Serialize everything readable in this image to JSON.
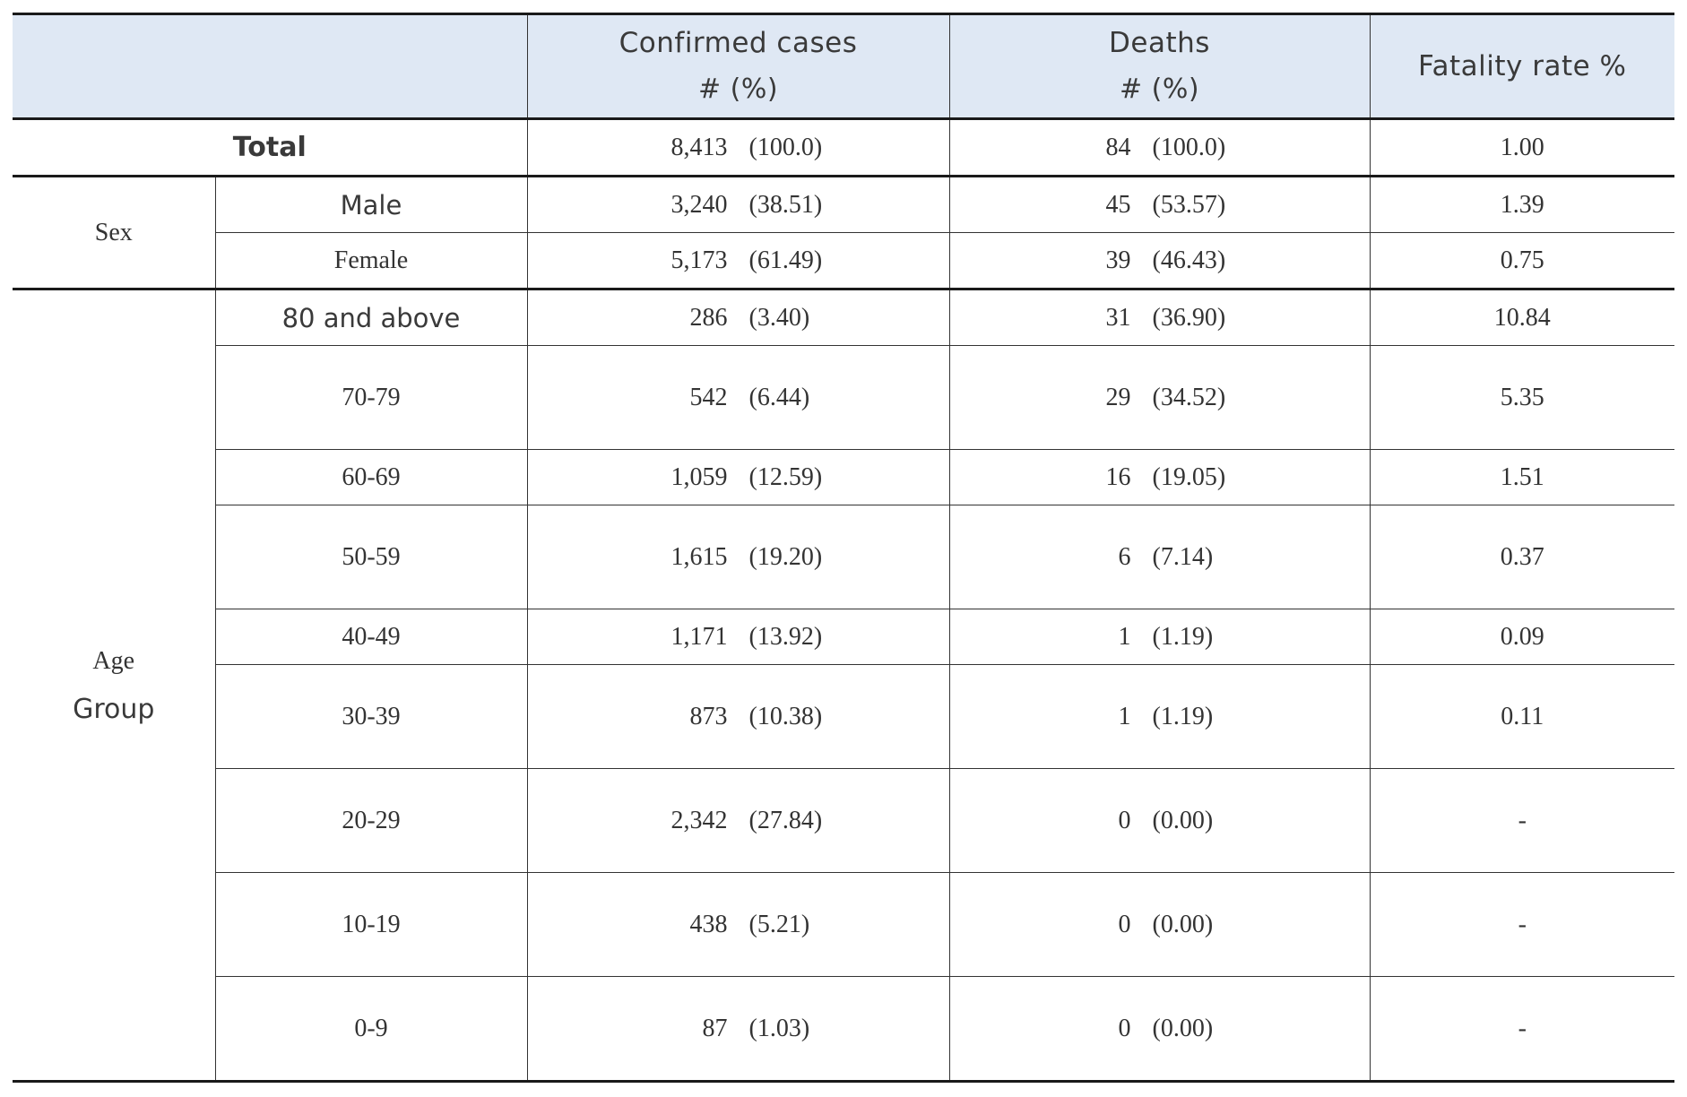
{
  "header": {
    "confirmed_line1": "Confirmed cases",
    "confirmed_line2": "# (%)",
    "deaths_line1": "Deaths",
    "deaths_line2": "# (%)",
    "fatality": "Fatality rate %"
  },
  "total": {
    "label": "Total",
    "cases": "8,413",
    "cases_pct": "(100.0)",
    "deaths": "84",
    "deaths_pct": "(100.0)",
    "rate": "1.00"
  },
  "sex": {
    "group_label": "Sex",
    "rows": [
      {
        "label": "Male",
        "cases": "3,240",
        "cases_pct": "(38.51)",
        "deaths": "45",
        "deaths_pct": "(53.57)",
        "rate": "1.39"
      },
      {
        "label": "Female",
        "cases": "5,173",
        "cases_pct": "(61.49)",
        "deaths": "39",
        "deaths_pct": "(46.43)",
        "rate": "0.75"
      }
    ]
  },
  "age": {
    "group_label_line1": "Age",
    "group_label_line2": "Group",
    "rows": [
      {
        "label": "80 and above",
        "cases": "286",
        "cases_pct": "(3.40)",
        "deaths": "31",
        "deaths_pct": "(36.90)",
        "rate": "10.84"
      },
      {
        "label": "70-79",
        "cases": "542",
        "cases_pct": "(6.44)",
        "deaths": "29",
        "deaths_pct": "(34.52)",
        "rate": "5.35"
      },
      {
        "label": "60-69",
        "cases": "1,059",
        "cases_pct": "(12.59)",
        "deaths": "16",
        "deaths_pct": "(19.05)",
        "rate": "1.51"
      },
      {
        "label": "50-59",
        "cases": "1,615",
        "cases_pct": "(19.20)",
        "deaths": "6",
        "deaths_pct": "(7.14)",
        "rate": "0.37"
      },
      {
        "label": "40-49",
        "cases": "1,171",
        "cases_pct": "(13.92)",
        "deaths": "1",
        "deaths_pct": "(1.19)",
        "rate": "0.09"
      },
      {
        "label": "30-39",
        "cases": "873",
        "cases_pct": "(10.38)",
        "deaths": "1",
        "deaths_pct": "(1.19)",
        "rate": "0.11"
      },
      {
        "label": "20-29",
        "cases": "2,342",
        "cases_pct": "(27.84)",
        "deaths": "0",
        "deaths_pct": "(0.00)",
        "rate": "-"
      },
      {
        "label": "10-19",
        "cases": "438",
        "cases_pct": "(5.21)",
        "deaths": "0",
        "deaths_pct": "(0.00)",
        "rate": "-"
      },
      {
        "label": "0-9",
        "cases": "87",
        "cases_pct": "(1.03)",
        "deaths": "0",
        "deaths_pct": "(0.00)",
        "rate": "-"
      }
    ]
  }
}
